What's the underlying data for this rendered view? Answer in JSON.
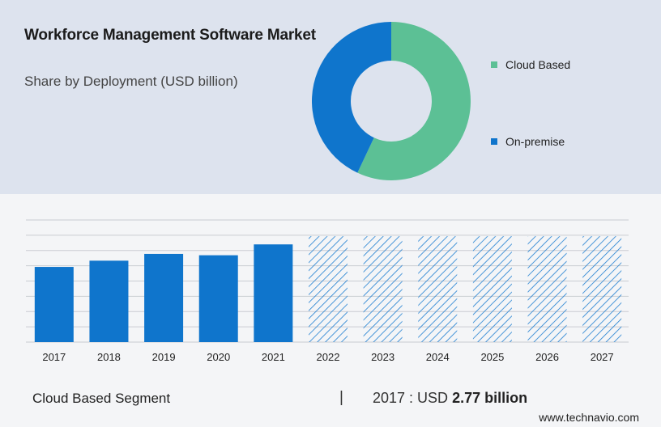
{
  "header": {
    "title": "Workforce Management Software Market",
    "subtitle": "Share by Deployment (USD billion)"
  },
  "colors": {
    "cloud": "#5cc095",
    "onpremise": "#0f75cc",
    "bar": "#0f75cc",
    "hatch": "#1f7fd1"
  },
  "chart_data": [
    {
      "type": "pie",
      "variant": "donut",
      "series": [
        {
          "name": "Cloud Based",
          "value": 57
        },
        {
          "name": "On-premise",
          "value": 43
        }
      ],
      "legend": [
        "Cloud Based",
        "On-premise"
      ],
      "legend_position": "right"
    },
    {
      "type": "bar",
      "categories": [
        "2017",
        "2018",
        "2019",
        "2020",
        "2021",
        "2022",
        "2023",
        "2024",
        "2025",
        "2026",
        "2027"
      ],
      "values": [
        2.77,
        3.0,
        3.25,
        3.2,
        3.6,
        null,
        null,
        null,
        null,
        null,
        null
      ],
      "forecast_height": 3.9,
      "forecast_style": "hatched",
      "ylim": [
        0,
        4.5
      ],
      "grid": true
    }
  ],
  "footer": {
    "segment": "Cloud Based Segment",
    "separator": "|",
    "value_prefix": "2017 : USD",
    "value_bold": "2.77 billion",
    "brand": "www.technavio.com"
  }
}
